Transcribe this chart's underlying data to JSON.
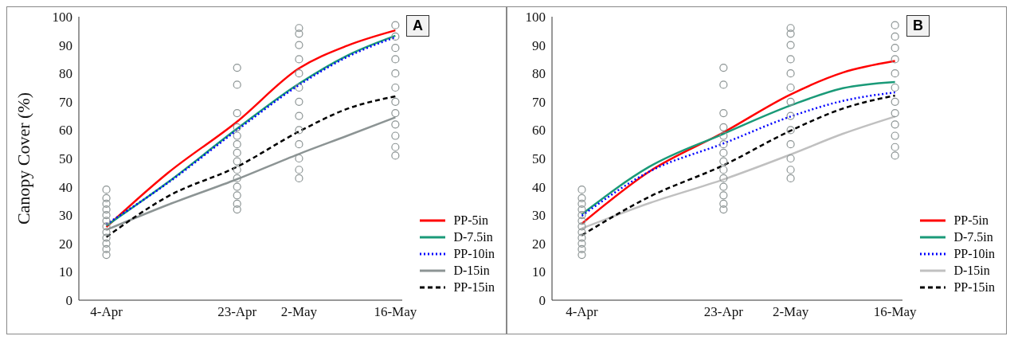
{
  "chart_data": [
    {
      "type": "line",
      "title": "A",
      "ylabel": "Canopy Cover (%)",
      "xlim": [
        "--03-31",
        "--05-17"
      ],
      "xticks": [
        {
          "value": "--04-04",
          "label": "4-Apr"
        },
        {
          "value": "--04-23",
          "label": "23-Apr"
        },
        {
          "value": "--05-02",
          "label": "2-May"
        },
        {
          "value": "--05-16",
          "label": "16-May"
        }
      ],
      "ylim": [
        0,
        100
      ],
      "yticks": [
        0,
        10,
        20,
        30,
        40,
        50,
        60,
        70,
        80,
        90,
        100
      ],
      "grid": false,
      "legend": "bottom right",
      "series": [
        {
          "type": "scatter",
          "color": "#8c9494",
          "marker": "circle",
          "x": [
            "--04-04",
            "--04-04",
            "--04-04",
            "--04-04",
            "--04-04",
            "--04-04",
            "--04-04",
            "--04-04",
            "--04-04",
            "--04-04",
            "--04-04",
            "--04-04",
            "--04-23",
            "--04-23",
            "--04-23",
            "--04-23",
            "--04-23",
            "--04-23",
            "--04-23",
            "--04-23",
            "--04-23",
            "--04-23",
            "--04-23",
            "--04-23",
            "--04-23",
            "--04-23",
            "--05-02",
            "--05-02",
            "--05-02",
            "--05-02",
            "--05-02",
            "--05-02",
            "--05-02",
            "--05-02",
            "--05-02",
            "--05-02",
            "--05-02",
            "--05-02",
            "--05-02",
            "--05-16",
            "--05-16",
            "--05-16",
            "--05-16",
            "--05-16",
            "--05-16",
            "--05-16",
            "--05-16",
            "--05-16",
            "--05-16",
            "--05-16",
            "--05-16"
          ],
          "values": [
            16,
            18,
            20,
            22,
            24,
            26,
            28,
            30,
            32,
            34,
            36,
            39,
            32,
            34,
            37,
            40,
            43,
            46,
            49,
            52,
            55,
            58,
            61,
            66,
            76,
            82,
            43,
            46,
            50,
            55,
            60,
            65,
            70,
            75,
            80,
            85,
            90,
            94,
            96,
            51,
            54,
            58,
            62,
            66,
            70,
            75,
            80,
            85,
            89,
            93,
            97
          ]
        },
        {
          "name": "PP-5in",
          "color": "#ff0000",
          "line_style": "solid",
          "x": [
            "--04-04",
            "--04-13",
            "--04-23",
            "--05-02",
            "--05-09",
            "--05-16"
          ],
          "values": [
            25.8,
            45,
            63,
            81.8,
            89.8,
            95.2
          ]
        },
        {
          "name": "D-7.5in",
          "color": "#1a9a78",
          "line_style": "solid",
          "x": [
            "--04-04",
            "--04-13",
            "--04-23",
            "--05-02",
            "--05-09",
            "--05-16"
          ],
          "values": [
            26.3,
            41.7,
            60.5,
            76.4,
            86.3,
            93.3
          ]
        },
        {
          "name": "PP-10in",
          "color": "#0000ff",
          "line_style": "dotted",
          "x": [
            "--04-04",
            "--04-13",
            "--04-23",
            "--05-02",
            "--05-09",
            "--05-16"
          ],
          "values": [
            26.8,
            41.5,
            60,
            75.9,
            85.8,
            92.8
          ]
        },
        {
          "name": "D-15in",
          "color": "#8c9494",
          "line_style": "solid",
          "x": [
            "--04-04",
            "--04-13",
            "--04-23",
            "--05-02",
            "--05-09",
            "--05-16"
          ],
          "values": [
            24.8,
            33.7,
            42.7,
            51.6,
            58,
            64.5
          ]
        },
        {
          "name": "PP-15in",
          "color": "#000000",
          "line_style": "dashed",
          "x": [
            "--04-04",
            "--04-13",
            "--04-23",
            "--05-02",
            "--05-09",
            "--05-16"
          ],
          "values": [
            22.3,
            36.7,
            47.1,
            59.5,
            67.5,
            71.9
          ]
        }
      ]
    },
    {
      "type": "line",
      "title": "B",
      "xlim": [
        "--03-31",
        "--05-17"
      ],
      "xticks": [
        {
          "value": "--04-04",
          "label": "4-Apr"
        },
        {
          "value": "--04-23",
          "label": "23-Apr"
        },
        {
          "value": "--05-02",
          "label": "2-May"
        },
        {
          "value": "--05-16",
          "label": "16-May"
        }
      ],
      "ylim": [
        0,
        100
      ],
      "yticks": [
        0,
        10,
        20,
        30,
        40,
        50,
        60,
        70,
        80,
        90,
        100
      ],
      "grid": false,
      "legend": "bottom right",
      "series": [
        {
          "type": "scatter",
          "color": "#8c9494",
          "marker": "circle",
          "x": [
            "--04-04",
            "--04-04",
            "--04-04",
            "--04-04",
            "--04-04",
            "--04-04",
            "--04-04",
            "--04-04",
            "--04-04",
            "--04-04",
            "--04-04",
            "--04-04",
            "--04-23",
            "--04-23",
            "--04-23",
            "--04-23",
            "--04-23",
            "--04-23",
            "--04-23",
            "--04-23",
            "--04-23",
            "--04-23",
            "--04-23",
            "--04-23",
            "--04-23",
            "--04-23",
            "--05-02",
            "--05-02",
            "--05-02",
            "--05-02",
            "--05-02",
            "--05-02",
            "--05-02",
            "--05-02",
            "--05-02",
            "--05-02",
            "--05-02",
            "--05-02",
            "--05-02",
            "--05-16",
            "--05-16",
            "--05-16",
            "--05-16",
            "--05-16",
            "--05-16",
            "--05-16",
            "--05-16",
            "--05-16",
            "--05-16",
            "--05-16",
            "--05-16"
          ],
          "values": [
            16,
            18,
            20,
            22,
            24,
            26,
            28,
            30,
            32,
            34,
            36,
            39,
            32,
            34,
            37,
            40,
            43,
            46,
            49,
            52,
            55,
            58,
            61,
            66,
            76,
            82,
            43,
            46,
            50,
            55,
            60,
            65,
            70,
            75,
            80,
            85,
            90,
            94,
            96,
            51,
            54,
            58,
            62,
            66,
            70,
            75,
            80,
            85,
            89,
            93,
            97
          ]
        },
        {
          "name": "PP-5in",
          "color": "#ff0000",
          "line_style": "solid",
          "x": [
            "--04-04",
            "--04-13",
            "--04-23",
            "--05-02",
            "--05-09",
            "--05-16"
          ],
          "values": [
            27,
            45.3,
            59.2,
            72.6,
            80.3,
            84.4
          ]
        },
        {
          "name": "D-7.5in",
          "color": "#1a9a78",
          "line_style": "solid",
          "x": [
            "--04-04",
            "--04-13",
            "--04-23",
            "--05-02",
            "--05-09",
            "--05-16"
          ],
          "values": [
            30.3,
            47,
            58.7,
            68.7,
            74.8,
            77
          ]
        },
        {
          "name": "PP-10in",
          "color": "#0000ff",
          "line_style": "dotted",
          "x": [
            "--04-04",
            "--04-13",
            "--04-23",
            "--05-02",
            "--05-09",
            "--05-16"
          ],
          "values": [
            29.8,
            45.3,
            55.3,
            64.8,
            70.3,
            73.3
          ]
        },
        {
          "name": "D-15in",
          "color": "#c0c0c0",
          "line_style": "solid",
          "x": [
            "--04-04",
            "--04-13",
            "--04-23",
            "--05-02",
            "--05-09",
            "--05-16"
          ],
          "values": [
            25.3,
            34.2,
            42.6,
            51.4,
            58.7,
            64.8
          ]
        },
        {
          "name": "PP-15in",
          "color": "#000000",
          "line_style": "dashed",
          "x": [
            "--04-04",
            "--04-13",
            "--04-23",
            "--05-02",
            "--05-09",
            "--05-16"
          ],
          "values": [
            22.9,
            36.4,
            47.6,
            59.8,
            67.6,
            72.2
          ]
        }
      ]
    }
  ]
}
